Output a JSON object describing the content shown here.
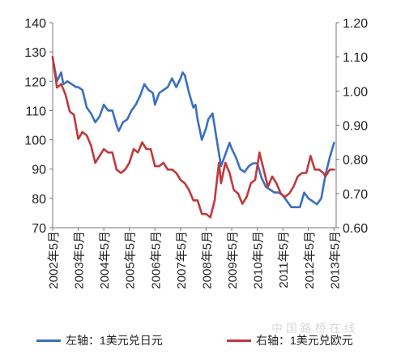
{
  "chart_data": {
    "type": "line",
    "x_tick_labels": [
      "2002年5月",
      "2003年5月",
      "2004年5月",
      "2005年5月",
      "2006年5月",
      "2007年5月",
      "2008年5月",
      "2009年5月",
      "2010年5月",
      "2011年5月",
      "2012年5月",
      "2013年5月"
    ],
    "left_axis": {
      "ylim": [
        70,
        140
      ],
      "ticks": [
        "70",
        "80",
        "90",
        "100",
        "110",
        "120",
        "130",
        "140"
      ]
    },
    "right_axis": {
      "ylim": [
        0.6,
        1.2
      ],
      "ticks": [
        "0.60",
        "0.70",
        "0.80",
        "0.90",
        "1.00",
        "1.10",
        "1.20"
      ]
    },
    "grid": false,
    "legend_position": "bottom",
    "series": [
      {
        "name": "左轴：1美元兑日元",
        "axis": "left",
        "color": "#3b6fbf",
        "points": [
          [
            "2002-05",
            128
          ],
          [
            "2002-07",
            120
          ],
          [
            "2002-09",
            123
          ],
          [
            "2002-10",
            119
          ],
          [
            "2002-12",
            120
          ],
          [
            "2003-02",
            119
          ],
          [
            "2003-04",
            118
          ],
          [
            "2003-05",
            118
          ],
          [
            "2003-07",
            117
          ],
          [
            "2003-09",
            111
          ],
          [
            "2003-11",
            109
          ],
          [
            "2004-01",
            106
          ],
          [
            "2004-03",
            108
          ],
          [
            "2004-05",
            112
          ],
          [
            "2004-07",
            110
          ],
          [
            "2004-09",
            110
          ],
          [
            "2004-11",
            105
          ],
          [
            "2004-12",
            103
          ],
          [
            "2005-02",
            106
          ],
          [
            "2005-04",
            107
          ],
          [
            "2005-06",
            110
          ],
          [
            "2005-08",
            112
          ],
          [
            "2005-10",
            115
          ],
          [
            "2005-12",
            119
          ],
          [
            "2006-02",
            117
          ],
          [
            "2006-04",
            116
          ],
          [
            "2006-05",
            112
          ],
          [
            "2006-07",
            116
          ],
          [
            "2006-09",
            117
          ],
          [
            "2006-11",
            118
          ],
          [
            "2007-01",
            121
          ],
          [
            "2007-03",
            118
          ],
          [
            "2007-05",
            121
          ],
          [
            "2007-06",
            123
          ],
          [
            "2007-07",
            122
          ],
          [
            "2007-09",
            116
          ],
          [
            "2007-11",
            111
          ],
          [
            "2007-12",
            112
          ],
          [
            "2008-01",
            107
          ],
          [
            "2008-03",
            100
          ],
          [
            "2008-05",
            104
          ],
          [
            "2008-06",
            107
          ],
          [
            "2008-08",
            109
          ],
          [
            "2008-10",
            100
          ],
          [
            "2008-12",
            91
          ],
          [
            "2009-02",
            95
          ],
          [
            "2009-04",
            99
          ],
          [
            "2009-05",
            97
          ],
          [
            "2009-07",
            94
          ],
          [
            "2009-09",
            90
          ],
          [
            "2009-11",
            89
          ],
          [
            "2010-01",
            91
          ],
          [
            "2010-03",
            92
          ],
          [
            "2010-05",
            92
          ],
          [
            "2010-07",
            87
          ],
          [
            "2010-09",
            84
          ],
          [
            "2010-11",
            83
          ],
          [
            "2011-01",
            82
          ],
          [
            "2011-03",
            82
          ],
          [
            "2011-05",
            81
          ],
          [
            "2011-07",
            79
          ],
          [
            "2011-09",
            77
          ],
          [
            "2011-11",
            77
          ],
          [
            "2012-01",
            77
          ],
          [
            "2012-03",
            82
          ],
          [
            "2012-05",
            80
          ],
          [
            "2012-07",
            79
          ],
          [
            "2012-09",
            78
          ],
          [
            "2012-11",
            80
          ],
          [
            "2013-01",
            88
          ],
          [
            "2013-03",
            94
          ],
          [
            "2013-05",
            99
          ]
        ]
      },
      {
        "name": "右轴：1美元兑欧元",
        "axis": "right",
        "color": "#c0393b",
        "points": [
          [
            "2002-05",
            1.1
          ],
          [
            "2002-07",
            1.01
          ],
          [
            "2002-09",
            1.02
          ],
          [
            "2002-11",
            0.99
          ],
          [
            "2003-01",
            0.94
          ],
          [
            "2003-03",
            0.93
          ],
          [
            "2003-05",
            0.86
          ],
          [
            "2003-07",
            0.88
          ],
          [
            "2003-09",
            0.87
          ],
          [
            "2003-11",
            0.84
          ],
          [
            "2004-01",
            0.79
          ],
          [
            "2004-03",
            0.81
          ],
          [
            "2004-05",
            0.83
          ],
          [
            "2004-07",
            0.82
          ],
          [
            "2004-09",
            0.82
          ],
          [
            "2004-11",
            0.77
          ],
          [
            "2005-01",
            0.76
          ],
          [
            "2005-03",
            0.77
          ],
          [
            "2005-05",
            0.79
          ],
          [
            "2005-07",
            0.83
          ],
          [
            "2005-09",
            0.82
          ],
          [
            "2005-11",
            0.85
          ],
          [
            "2006-01",
            0.83
          ],
          [
            "2006-03",
            0.83
          ],
          [
            "2006-05",
            0.78
          ],
          [
            "2006-07",
            0.78
          ],
          [
            "2006-09",
            0.79
          ],
          [
            "2006-11",
            0.77
          ],
          [
            "2007-01",
            0.77
          ],
          [
            "2007-03",
            0.76
          ],
          [
            "2007-05",
            0.74
          ],
          [
            "2007-07",
            0.73
          ],
          [
            "2007-09",
            0.71
          ],
          [
            "2007-11",
            0.68
          ],
          [
            "2008-01",
            0.68
          ],
          [
            "2008-03",
            0.64
          ],
          [
            "2008-05",
            0.64
          ],
          [
            "2008-07",
            0.63
          ],
          [
            "2008-09",
            0.68
          ],
          [
            "2008-11",
            0.79
          ],
          [
            "2008-12",
            0.73
          ],
          [
            "2009-02",
            0.79
          ],
          [
            "2009-04",
            0.76
          ],
          [
            "2009-06",
            0.71
          ],
          [
            "2009-08",
            0.7
          ],
          [
            "2009-10",
            0.67
          ],
          [
            "2009-12",
            0.69
          ],
          [
            "2010-02",
            0.73
          ],
          [
            "2010-04",
            0.74
          ],
          [
            "2010-06",
            0.82
          ],
          [
            "2010-08",
            0.77
          ],
          [
            "2010-10",
            0.72
          ],
          [
            "2010-12",
            0.75
          ],
          [
            "2011-02",
            0.73
          ],
          [
            "2011-04",
            0.7
          ],
          [
            "2011-06",
            0.69
          ],
          [
            "2011-08",
            0.7
          ],
          [
            "2011-10",
            0.72
          ],
          [
            "2011-12",
            0.75
          ],
          [
            "2012-02",
            0.76
          ],
          [
            "2012-04",
            0.76
          ],
          [
            "2012-06",
            0.81
          ],
          [
            "2012-08",
            0.77
          ],
          [
            "2012-10",
            0.77
          ],
          [
            "2012-12",
            0.76
          ],
          [
            "2013-01",
            0.75
          ],
          [
            "2013-03",
            0.77
          ],
          [
            "2013-05",
            0.77
          ]
        ]
      }
    ]
  },
  "watermark_text": "中 国 路 桥 在 线"
}
